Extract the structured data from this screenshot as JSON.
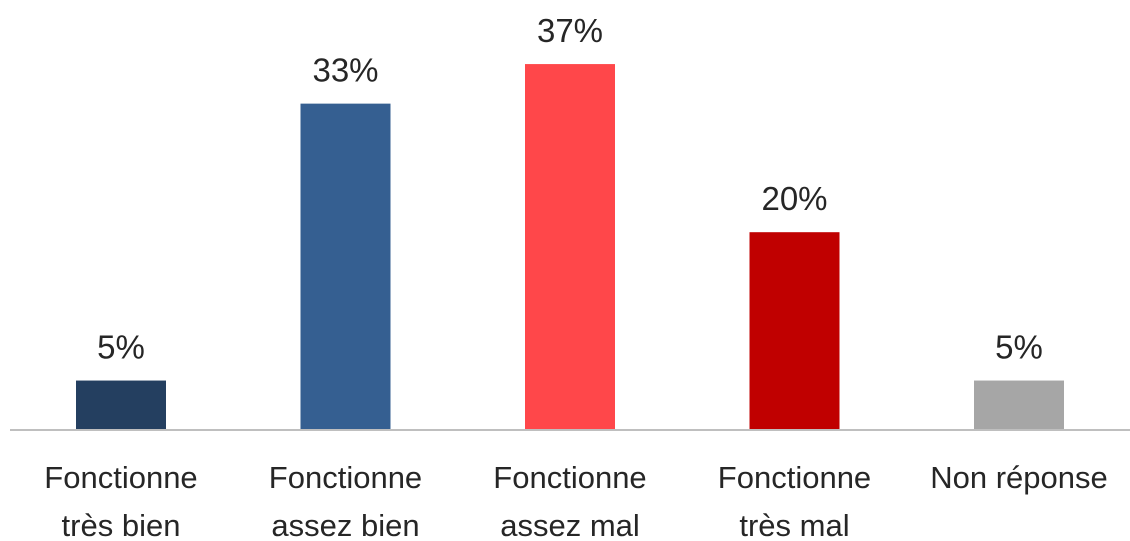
{
  "chart_data": {
    "type": "bar",
    "title": "",
    "xlabel": "",
    "ylabel": "",
    "ylim": [
      0,
      40
    ],
    "grid": false,
    "legend": "none",
    "categories": [
      [
        "Fonctionne",
        "très bien"
      ],
      [
        "Fonctionne",
        "assez bien"
      ],
      [
        "Fonctionne",
        "assez mal"
      ],
      [
        "Fonctionne",
        "très mal"
      ],
      [
        "Non réponse"
      ]
    ],
    "values": [
      5,
      33,
      37,
      20,
      5
    ],
    "value_labels": [
      "5%",
      "33%",
      "37%",
      "20%",
      "5%"
    ],
    "colors": [
      "#243F60",
      "#355F91",
      "#FF474A",
      "#C00000",
      "#A6A6A6"
    ],
    "axis_color": "#BFBFBF",
    "text_color": "#262626"
  }
}
